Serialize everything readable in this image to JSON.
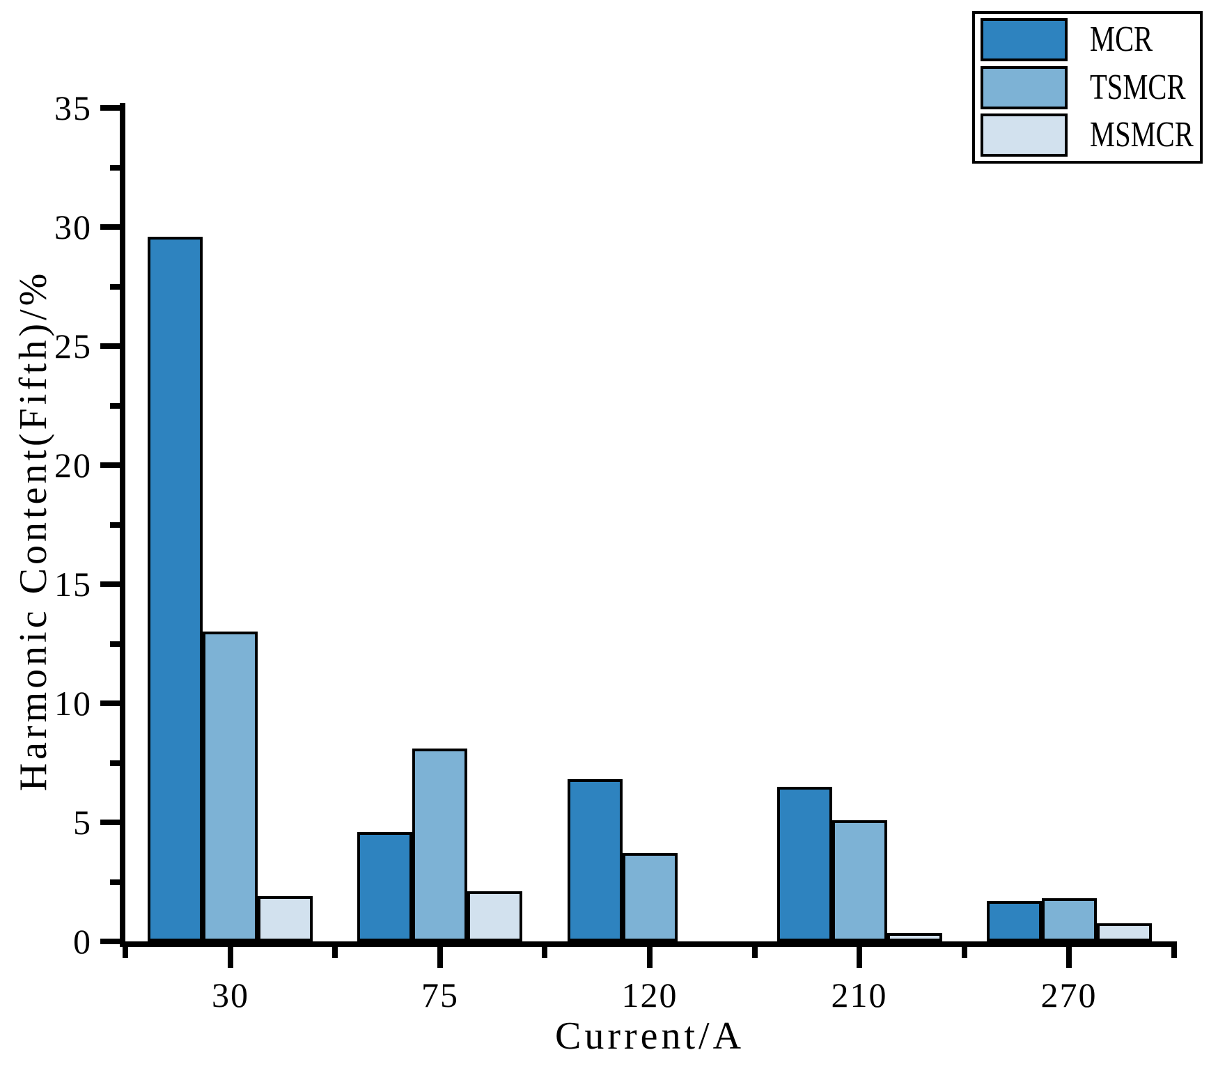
{
  "chart_data": {
    "type": "bar",
    "title": "",
    "xlabel": "Current/A",
    "ylabel": "Harmonic Content(Fifth)/%",
    "categories": [
      "30",
      "75",
      "120",
      "210",
      "270"
    ],
    "series": [
      {
        "name": "MCR",
        "color": "#2e83bf",
        "values": [
          29.6,
          4.6,
          6.8,
          6.5,
          1.7
        ]
      },
      {
        "name": "TSMCR",
        "color": "#7db2d5",
        "values": [
          13.0,
          8.1,
          3.7,
          5.1,
          1.8
        ]
      },
      {
        "name": "MSMCR",
        "color": "#d2e1ee",
        "values": [
          1.9,
          2.1,
          0,
          0.35,
          0.75
        ]
      }
    ],
    "ylim": [
      0,
      35
    ],
    "yticks": [
      0,
      5,
      10,
      15,
      20,
      25,
      30,
      35
    ],
    "y_minor_step": 2.5,
    "grid": false,
    "bar_edge_color": "#000000",
    "axis_color": "#000000",
    "legend": {
      "position": "top-right",
      "entries": [
        "MCR",
        "TSMCR",
        "MSMCR"
      ]
    }
  }
}
